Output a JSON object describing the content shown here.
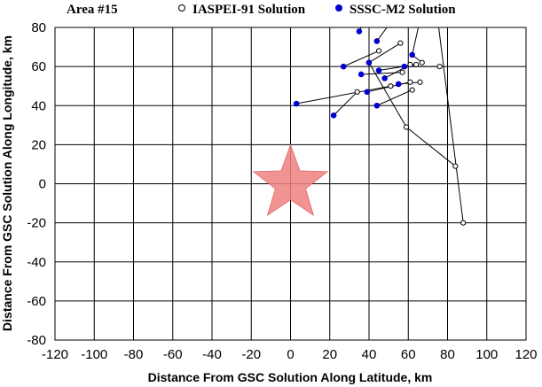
{
  "chart_data": {
    "type": "scatter",
    "title": "Area #15",
    "xlabel": "Distance From GSC Solution Along Latitude, km",
    "ylabel": "Distance From GSC Solution Along Longitude, km",
    "xlim": [
      -120,
      120
    ],
    "ylim": [
      -80,
      80
    ],
    "xticks": [
      -120,
      -100,
      -80,
      -60,
      -40,
      -20,
      0,
      20,
      40,
      60,
      80,
      100,
      120
    ],
    "yticks": [
      -80,
      -60,
      -40,
      -20,
      0,
      20,
      40,
      60,
      80
    ],
    "grid": true,
    "legend_position": "top",
    "reference": {
      "name": "GSC Solution",
      "x": 0,
      "y": 0,
      "color": "#f08080"
    },
    "series": [
      {
        "name": "IASPEI-91 Solution",
        "marker": "open-circle",
        "color": "#000000",
        "points": [
          [
            45,
            68
          ],
          [
            56,
            72
          ],
          [
            67,
            62
          ],
          [
            64,
            61
          ],
          [
            61,
            61
          ],
          [
            76,
            60
          ],
          [
            57,
            57
          ],
          [
            66,
            52
          ],
          [
            61,
            52
          ],
          [
            62,
            48
          ],
          [
            51,
            50
          ],
          [
            34,
            47
          ],
          [
            59,
            29
          ],
          [
            84,
            9
          ],
          [
            88,
            -20
          ]
        ]
      },
      {
        "name": "SSSC-M2 Solution",
        "marker": "filled-circle",
        "color": "#0000cc",
        "points": [
          [
            35,
            78
          ],
          [
            44,
            73
          ],
          [
            62,
            66
          ],
          [
            40,
            62
          ],
          [
            27,
            60
          ],
          [
            58,
            60
          ],
          [
            45,
            58
          ],
          [
            36,
            56
          ],
          [
            48,
            54
          ],
          [
            55,
            51
          ],
          [
            39,
            47
          ],
          [
            3,
            41
          ],
          [
            44,
            40
          ],
          [
            22,
            35
          ]
        ]
      }
    ],
    "links": [
      [
        [
          35,
          78
        ],
        [
          38,
          84
        ]
      ],
      [
        [
          44,
          73
        ],
        [
          52,
          84
        ]
      ],
      [
        [
          62,
          66
        ],
        [
          66,
          84
        ]
      ],
      [
        [
          62,
          66
        ],
        [
          67,
          62
        ]
      ],
      [
        [
          27,
          60
        ],
        [
          45,
          68
        ]
      ],
      [
        [
          40,
          62
        ],
        [
          56,
          72
        ]
      ],
      [
        [
          58,
          60
        ],
        [
          76,
          60
        ]
      ],
      [
        [
          45,
          58
        ],
        [
          64,
          61
        ]
      ],
      [
        [
          48,
          54
        ],
        [
          61,
          61
        ]
      ],
      [
        [
          55,
          51
        ],
        [
          66,
          52
        ]
      ],
      [
        [
          36,
          56
        ],
        [
          57,
          57
        ]
      ],
      [
        [
          39,
          47
        ],
        [
          61,
          52
        ]
      ],
      [
        [
          3,
          41
        ],
        [
          51,
          50
        ]
      ],
      [
        [
          44,
          40
        ],
        [
          62,
          48
        ]
      ],
      [
        [
          22,
          35
        ],
        [
          34,
          47
        ]
      ],
      [
        [
          40,
          62
        ],
        [
          59,
          29
        ]
      ],
      [
        [
          59,
          29
        ],
        [
          84,
          9
        ]
      ],
      [
        [
          75,
          84
        ],
        [
          88,
          -20
        ]
      ]
    ]
  }
}
